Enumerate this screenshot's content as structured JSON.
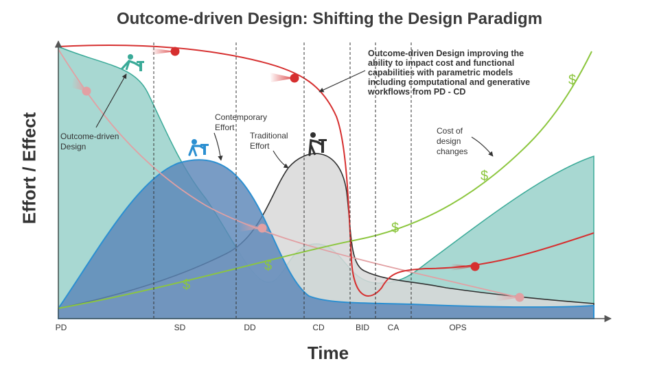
{
  "title": "Outcome-driven Design: Shifting the Design Paradigm",
  "axes": {
    "y_label": "Effort / Effect",
    "x_label": "Time"
  },
  "phases": [
    "PD",
    "SD",
    "DD",
    "CD",
    "BID",
    "CA",
    "OPS"
  ],
  "annotations": {
    "outcome_driven": [
      "Outcome-driven",
      "Design"
    ],
    "contemporary": [
      "Contemporary",
      "Effort"
    ],
    "traditional": [
      "Traditional",
      "Effort"
    ],
    "cost_of_changes": [
      "Cost of",
      "design",
      "changes"
    ],
    "callout": [
      "Outcome-driven Design improving the",
      "ability to impact cost  and functional",
      "capabilities with parametric models",
      "including computational and generative",
      "workflows from PD - CD"
    ]
  },
  "currency_symbol": "$",
  "icons": [
    "worker-jackhammer-teal-icon",
    "worker-jackhammer-blue-icon",
    "worker-jackhammer-dark-icon",
    "speed-ball-icon"
  ],
  "colors": {
    "teal_fill": "#a8d8d2",
    "teal_line": "#3aaa98",
    "blue_fill": "#5b86b8",
    "blue_line": "#2b8fd1",
    "gray_fill": "#d8d8d8",
    "dark_line": "#2f2f2f",
    "red_line": "#d62f2f",
    "green_line": "#8cc63e",
    "pink_line": "#e2a0a3",
    "axis": "#555555"
  }
}
